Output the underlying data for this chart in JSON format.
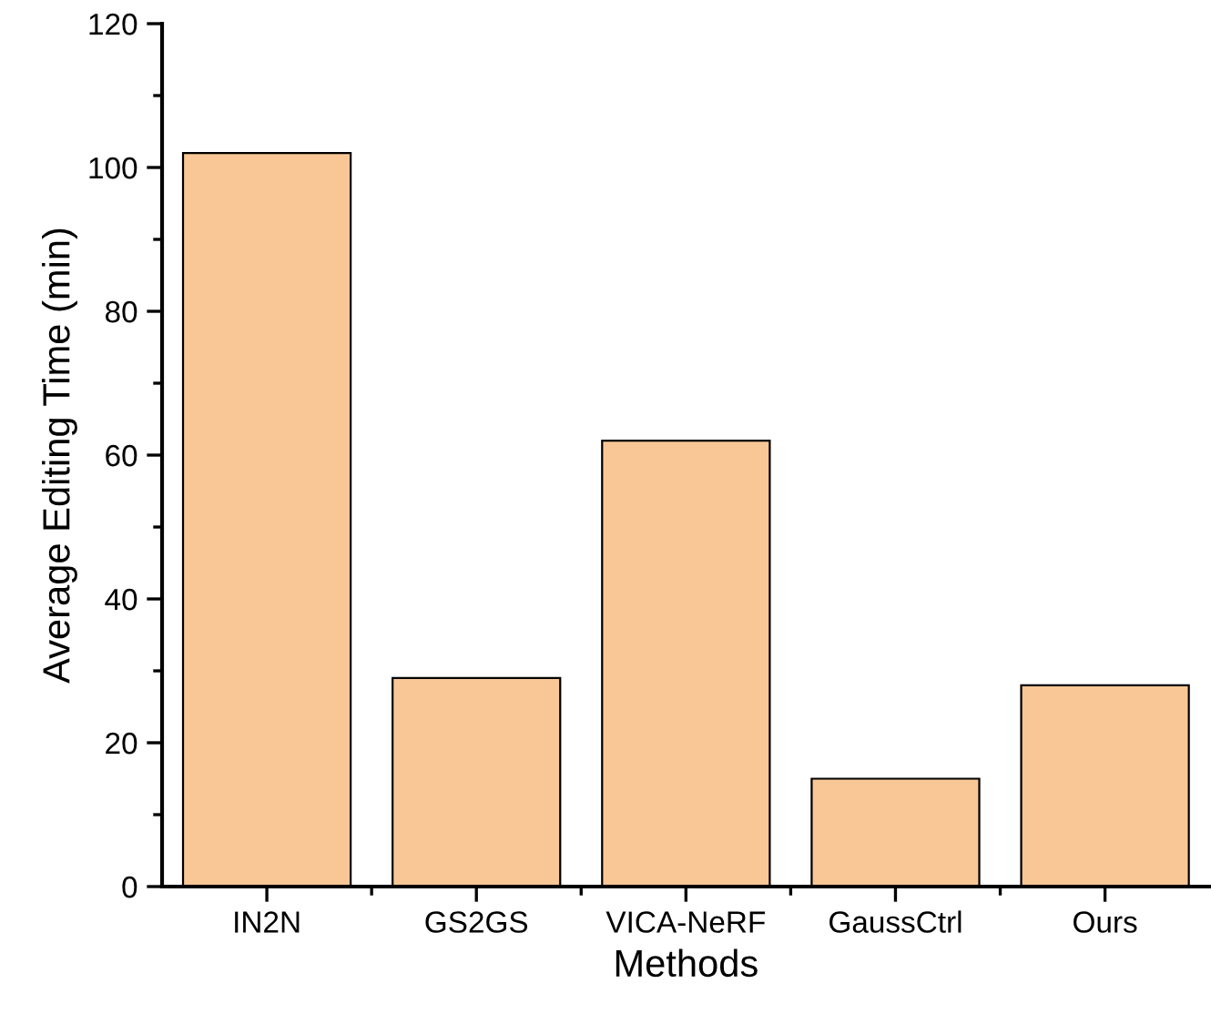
{
  "chart_data": {
    "type": "bar",
    "xlabel": "Methods",
    "ylabel": "Average Editing Time (min)",
    "categories": [
      "IN2N",
      "GS2GS",
      "VICA-NeRF",
      "GaussCtrl",
      "Ours"
    ],
    "values": [
      102,
      29,
      62,
      15,
      28
    ],
    "color": "#f9c796",
    "ylim": [
      0,
      120
    ],
    "yticks": [
      0,
      20,
      40,
      60,
      80,
      100,
      120
    ],
    "grid": false,
    "legend": false
  }
}
